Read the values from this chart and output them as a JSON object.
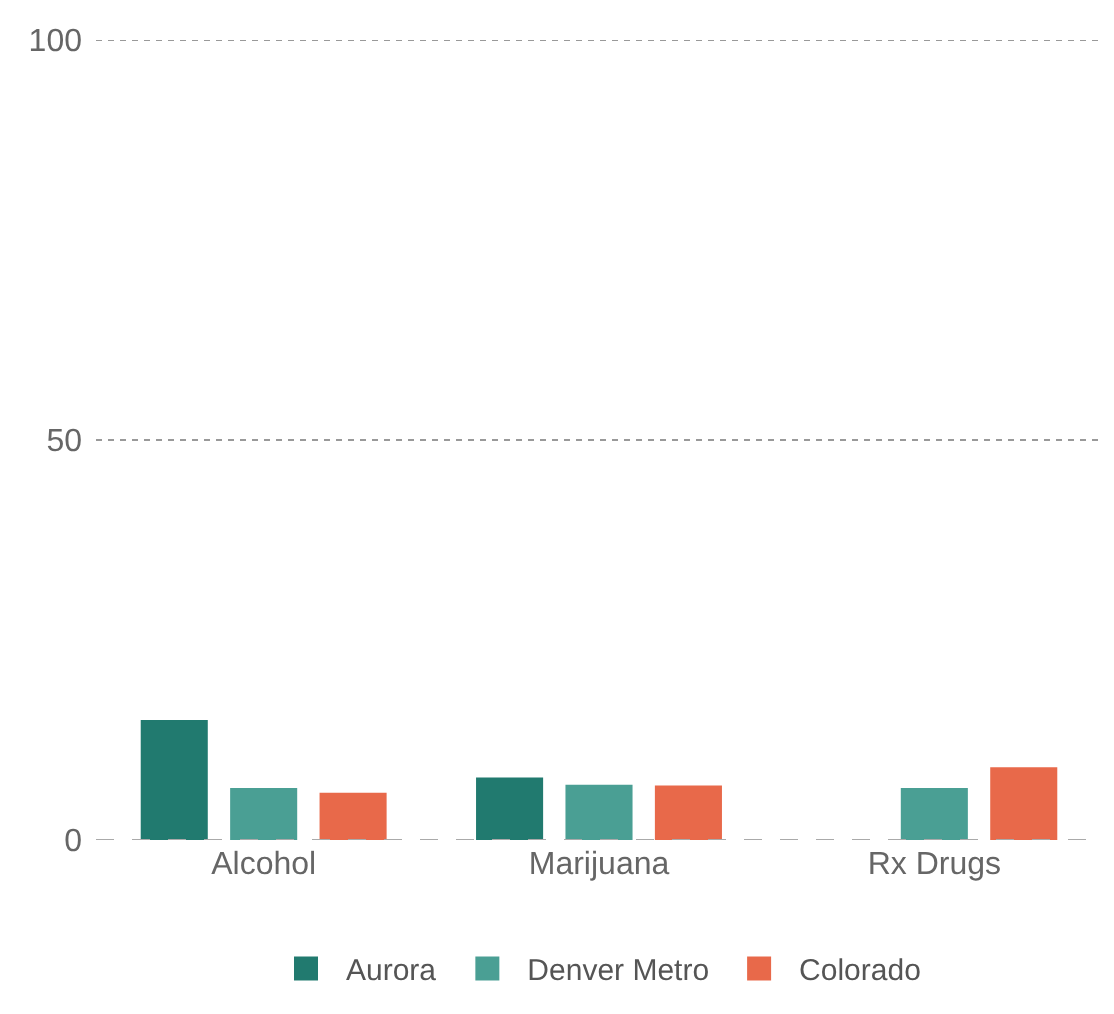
{
  "chart_data": {
    "type": "bar",
    "categories": [
      "Alcohol",
      "Marijuana",
      "Rx Drugs"
    ],
    "series": [
      {
        "name": "Aurora",
        "color": "#217a6f",
        "values": [
          15,
          7.8,
          null
        ]
      },
      {
        "name": "Denver Metro",
        "color": "#4a9f94",
        "values": [
          6.5,
          6.9,
          6.5
        ]
      },
      {
        "name": "Colorado",
        "color": "#e8694a",
        "values": [
          5.9,
          6.8,
          9.1
        ]
      }
    ],
    "ylim": [
      0,
      100
    ],
    "yticks": [
      0,
      50,
      100
    ],
    "grid": "y",
    "legend": "bottom"
  }
}
